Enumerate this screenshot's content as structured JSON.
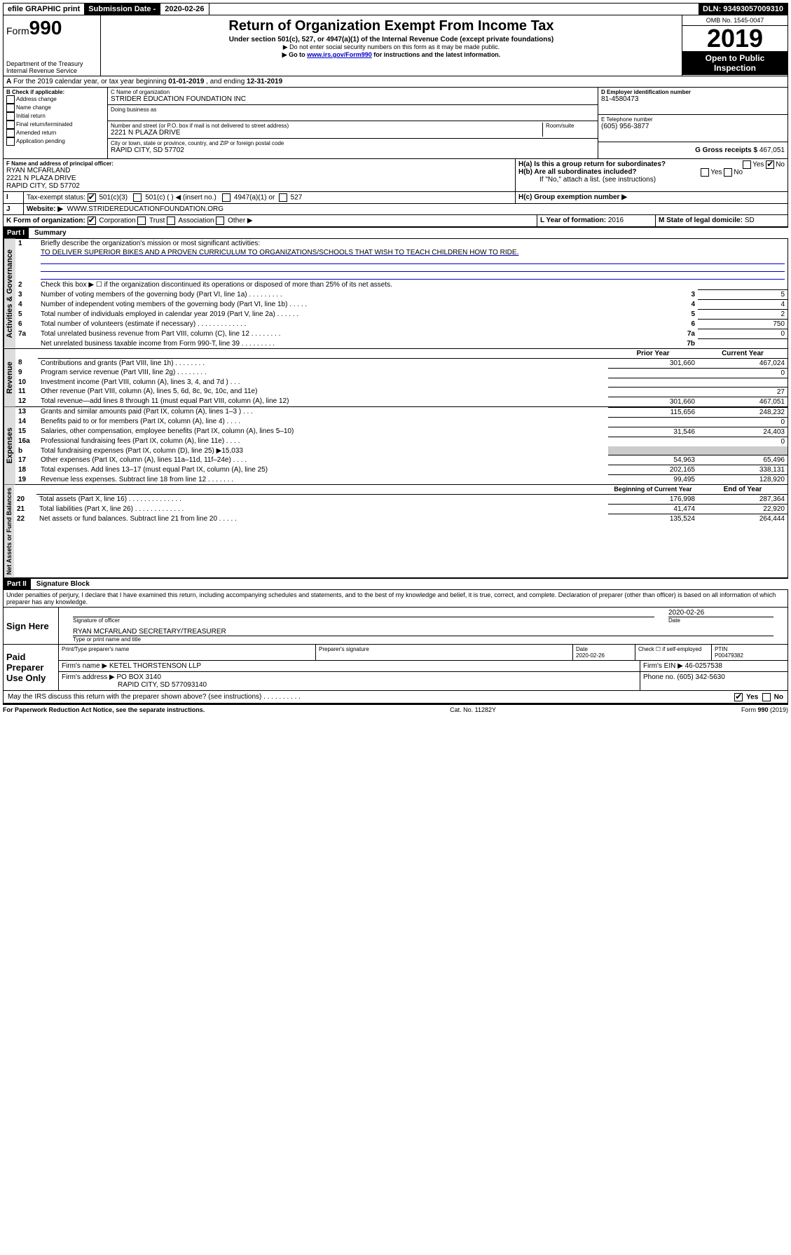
{
  "top": {
    "efile": "efile GRAPHIC print",
    "sub_label": "Submission Date - ",
    "sub_date": "2020-02-26",
    "dln": "DLN: 93493057009310"
  },
  "header": {
    "form": "Form",
    "form_num": "990",
    "dept": "Department of the Treasury",
    "irs": "Internal Revenue Service",
    "title": "Return of Organization Exempt From Income Tax",
    "subtitle": "Under section 501(c), 527, or 4947(a)(1) of the Internal Revenue Code (except private foundations)",
    "note1": "▶ Do not enter social security numbers on this form as it may be made public.",
    "note2_pre": "▶ Go to ",
    "note2_link": "www.irs.gov/Form990",
    "note2_post": " for instructions and the latest information.",
    "omb": "OMB No. 1545-0047",
    "year": "2019",
    "open": "Open to Public Inspection"
  },
  "a": {
    "text": "For the 2019 calendar year, or tax year beginning ",
    "begin": "01-01-2019",
    "mid": " , and ending ",
    "end": "12-31-2019"
  },
  "b": {
    "label": "B Check if applicable:",
    "opts": [
      "Address change",
      "Name change",
      "Initial return",
      "Final return/terminated",
      "Amended return",
      "Application pending"
    ]
  },
  "c": {
    "label_name": "C Name of organization",
    "name": "STRIDER EDUCATION FOUNDATION INC",
    "dba": "Doing business as",
    "addr_label": "Number and street (or P.O. box if mail is not delivered to street address)",
    "room": "Room/suite",
    "addr": "2221 N PLAZA DRIVE",
    "city_label": "City or town, state or province, country, and ZIP or foreign postal code",
    "city": "RAPID CITY, SD  57702"
  },
  "d": {
    "label": "D Employer identification number",
    "val": "81-4580473"
  },
  "e": {
    "label": "E Telephone number",
    "val": "(605) 956-3877"
  },
  "g": {
    "label": "G Gross receipts $",
    "val": "467,051"
  },
  "f": {
    "label": "F Name and address of principal officer:",
    "name": "RYAN MCFARLAND",
    "addr1": "2221 N PLAZA DRIVE",
    "addr2": "RAPID CITY, SD  57702"
  },
  "h": {
    "a": "H(a)  Is this a group return for subordinates?",
    "b": "H(b)  Are all subordinates included?",
    "b_note": "If \"No,\" attach a list. (see instructions)",
    "c": "H(c)  Group exemption number ▶",
    "yes": "Yes",
    "no": "No"
  },
  "i": {
    "label": "Tax-exempt status:",
    "opt1": "501(c)(3)",
    "opt2": "501(c) (  ) ◀ (insert no.)",
    "opt3": "4947(a)(1) or",
    "opt4": "527"
  },
  "j": {
    "label": "Website: ▶",
    "val": "WWW.STRIDEREDUCATIONFOUNDATION.ORG"
  },
  "k": {
    "label": "K Form of organization:",
    "corp": "Corporation",
    "trust": "Trust",
    "assoc": "Association",
    "other": "Other ▶"
  },
  "l": {
    "label": "L Year of formation:",
    "val": "2016"
  },
  "m": {
    "label": "M State of legal domicile:",
    "val": "SD"
  },
  "part1": {
    "title": "Part I",
    "name": "Summary",
    "tab1": "Activities & Governance",
    "tab2": "Revenue",
    "tab3": "Expenses",
    "tab4": "Net Assets or Fund Balances",
    "l1": "Briefly describe the organization's mission or most significant activities:",
    "l1_text": "TO DELIVER SUPERIOR BIKES AND A PROVEN CURRICULUM TO ORGANIZATIONS/SCHOOLS THAT WISH TO TEACH CHILDREN HOW TO RIDE.",
    "l2": "Check this box ▶ ☐  if the organization discontinued its operations or disposed of more than 25% of its net assets.",
    "rows_gov": [
      {
        "n": "3",
        "t": "Number of voting members of the governing body (Part VI, line 1a)  .   .   .   .   .   .   .   .   .",
        "box": "3",
        "v": "5"
      },
      {
        "n": "4",
        "t": "Number of independent voting members of the governing body (Part VI, line 1b)  .   .   .   .   .",
        "box": "4",
        "v": "4"
      },
      {
        "n": "5",
        "t": "Total number of individuals employed in calendar year 2019 (Part V, line 2a)  .   .   .   .   .   .",
        "box": "5",
        "v": "2"
      },
      {
        "n": "6",
        "t": "Total number of volunteers (estimate if necessary)  .   .   .   .   .   .   .   .   .   .   .   .   .",
        "box": "6",
        "v": "750"
      },
      {
        "n": "7a",
        "t": "Total unrelated business revenue from Part VIII, column (C), line 12  .   .   .   .   .   .   .   .",
        "box": "7a",
        "v": "0"
      },
      {
        "n": "",
        "t": "Net unrelated business taxable income from Form 990-T, line 39  .   .   .   .   .   .   .   .   .",
        "box": "7b",
        "v": ""
      }
    ],
    "hdr_prior": "Prior Year",
    "hdr_curr": "Current Year",
    "rows_rev": [
      {
        "n": "8",
        "t": "Contributions and grants (Part VIII, line 1h)  .   .   .   .   .   .   .   .",
        "p": "301,660",
        "c": "467,024"
      },
      {
        "n": "9",
        "t": "Program service revenue (Part VIII, line 2g)  .   .   .   .   .   .   .   .",
        "p": "",
        "c": "0"
      },
      {
        "n": "10",
        "t": "Investment income (Part VIII, column (A), lines 3, 4, and 7d )  .   .   .",
        "p": "",
        "c": ""
      },
      {
        "n": "11",
        "t": "Other revenue (Part VIII, column (A), lines 5, 6d, 8c, 9c, 10c, and 11e)",
        "p": "",
        "c": "27"
      },
      {
        "n": "12",
        "t": "Total revenue—add lines 8 through 11 (must equal Part VIII, column (A), line 12)",
        "p": "301,660",
        "c": "467,051"
      }
    ],
    "rows_exp": [
      {
        "n": "13",
        "t": "Grants and similar amounts paid (Part IX, column (A), lines 1–3 )  .   .   .",
        "p": "115,656",
        "c": "248,232"
      },
      {
        "n": "14",
        "t": "Benefits paid to or for members (Part IX, column (A), line 4)  .   .   .   .",
        "p": "",
        "c": "0"
      },
      {
        "n": "15",
        "t": "Salaries, other compensation, employee benefits (Part IX, column (A), lines 5–10)",
        "p": "31,546",
        "c": "24,403"
      },
      {
        "n": "16a",
        "t": "Professional fundraising fees (Part IX, column (A), line 11e)  .   .   .   .",
        "p": "",
        "c": "0"
      },
      {
        "n": "b",
        "t": "Total fundraising expenses (Part IX, column (D), line 25) ▶15,033",
        "p": "GREY",
        "c": "GREY"
      },
      {
        "n": "17",
        "t": "Other expenses (Part IX, column (A), lines 11a–11d, 11f–24e)  .   .   .   .",
        "p": "54,963",
        "c": "65,496"
      },
      {
        "n": "18",
        "t": "Total expenses. Add lines 13–17 (must equal Part IX, column (A), line 25)",
        "p": "202,165",
        "c": "338,131"
      },
      {
        "n": "19",
        "t": "Revenue less expenses. Subtract line 18 from line 12  .   .   .   .   .   .   .",
        "p": "99,495",
        "c": "128,920"
      }
    ],
    "hdr_begin": "Beginning of Current Year",
    "hdr_end": "End of Year",
    "rows_net": [
      {
        "n": "20",
        "t": "Total assets (Part X, line 16)  .   .   .   .   .   .   .   .   .   .   .   .   .   .",
        "p": "176,998",
        "c": "287,364"
      },
      {
        "n": "21",
        "t": "Total liabilities (Part X, line 26)  .   .   .   .   .   .   .   .   .   .   .   .   .",
        "p": "41,474",
        "c": "22,920"
      },
      {
        "n": "22",
        "t": "Net assets or fund balances. Subtract line 21 from line 20  .   .   .   .   .",
        "p": "135,524",
        "c": "264,444"
      }
    ]
  },
  "part2": {
    "title": "Part II",
    "name": "Signature Block",
    "decl": "Under penalties of perjury, I declare that I have examined this return, including accompanying schedules and statements, and to the best of my knowledge and belief, it is true, correct, and complete. Declaration of preparer (other than officer) is based on all information of which preparer has any knowledge.",
    "sign_here": "Sign Here",
    "sig_officer": "Signature of officer",
    "date": "2020-02-26",
    "date_lbl": "Date",
    "officer_name": "RYAN MCFARLAND  SECRETARY/TREASURER",
    "type_name": "Type or print name and title",
    "paid": "Paid Preparer Use Only",
    "prep_name_lbl": "Print/Type preparer's name",
    "prep_sig_lbl": "Preparer's signature",
    "prep_date": "2020-02-26",
    "check_self": "Check ☐ if self-employed",
    "ptin_lbl": "PTIN",
    "ptin": "P00479382",
    "firm_name_lbl": "Firm's name    ▶",
    "firm_name": "KETEL THORSTENSON LLP",
    "firm_ein_lbl": "Firm's EIN ▶",
    "firm_ein": "46-0257538",
    "firm_addr_lbl": "Firm's address ▶",
    "firm_addr1": "PO BOX 3140",
    "firm_addr2": "RAPID CITY, SD  577093140",
    "phone_lbl": "Phone no.",
    "phone": "(605) 342-5630",
    "discuss": "May the IRS discuss this return with the preparer shown above? (see instructions)   .   .   .   .   .   .   .   .   .   .",
    "yes": "Yes",
    "no": "No"
  },
  "footer": {
    "left": "For Paperwork Reduction Act Notice, see the separate instructions.",
    "mid": "Cat. No. 11282Y",
    "right": "Form 990 (2019)"
  }
}
